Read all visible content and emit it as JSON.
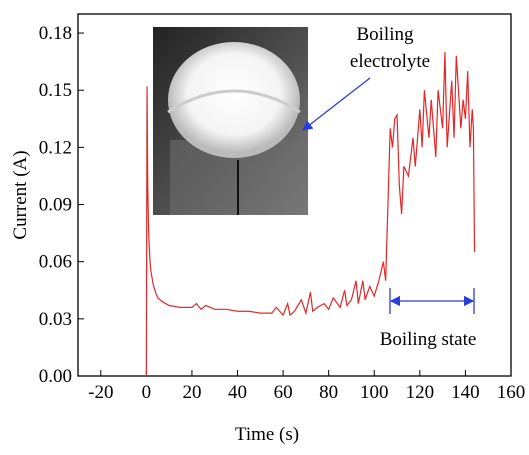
{
  "chart_data": {
    "type": "line",
    "xlabel": "Time (s)",
    "ylabel": "Current (A)",
    "annotations": [
      "Boiling",
      "electrolyte",
      "Boiling state"
    ],
    "xlim": [
      -30,
      160
    ],
    "ylim": [
      0,
      0.19
    ],
    "xticks": [
      -20,
      0,
      20,
      40,
      60,
      80,
      100,
      120,
      140,
      160
    ],
    "yticks": [
      {
        "value": 0,
        "label": "0.00"
      },
      {
        "value": 0.03,
        "label": "0.03"
      },
      {
        "value": 0.06,
        "label": "0.06"
      },
      {
        "value": 0.09,
        "label": "0.09"
      },
      {
        "value": 0.12,
        "label": "0.12"
      },
      {
        "value": 0.15,
        "label": "0.15"
      },
      {
        "value": 0.18,
        "label": "0.18"
      }
    ],
    "x": [
      0,
      0.3,
      0.6,
      1,
      1.5,
      2,
      3,
      4,
      5,
      7,
      10,
      15,
      20,
      22,
      24,
      26,
      30,
      35,
      40,
      45,
      50,
      55,
      57,
      60,
      62,
      63,
      65,
      68,
      70,
      72,
      73,
      75,
      78,
      80,
      82,
      85,
      87,
      88,
      90,
      92,
      93,
      95,
      96,
      98,
      100,
      102,
      104,
      105,
      106,
      107,
      108,
      109,
      110,
      111,
      112,
      113,
      115,
      117,
      118,
      120,
      121,
      122,
      124,
      125,
      127,
      128,
      130,
      131,
      132,
      134,
      135,
      136,
      138,
      139,
      140,
      141,
      142,
      143,
      143.5,
      144
    ],
    "series": [
      {
        "color": "#e02828",
        "values": [
          0,
          0.152,
          0.1,
          0.075,
          0.062,
          0.055,
          0.048,
          0.044,
          0.041,
          0.039,
          0.037,
          0.036,
          0.036,
          0.038,
          0.035,
          0.037,
          0.035,
          0.035,
          0.034,
          0.034,
          0.033,
          0.033,
          0.036,
          0.032,
          0.038,
          0.032,
          0.034,
          0.04,
          0.033,
          0.044,
          0.034,
          0.036,
          0.038,
          0.035,
          0.041,
          0.036,
          0.045,
          0.037,
          0.04,
          0.05,
          0.038,
          0.05,
          0.04,
          0.047,
          0.042,
          0.05,
          0.06,
          0.05,
          0.09,
          0.13,
          0.12,
          0.135,
          0.137,
          0.1,
          0.085,
          0.11,
          0.105,
          0.125,
          0.11,
          0.14,
          0.12,
          0.15,
          0.125,
          0.145,
          0.115,
          0.15,
          0.13,
          0.17,
          0.12,
          0.155,
          0.125,
          0.168,
          0.13,
          0.145,
          0.135,
          0.16,
          0.12,
          0.14,
          0.13,
          0.065
        ]
      }
    ]
  }
}
